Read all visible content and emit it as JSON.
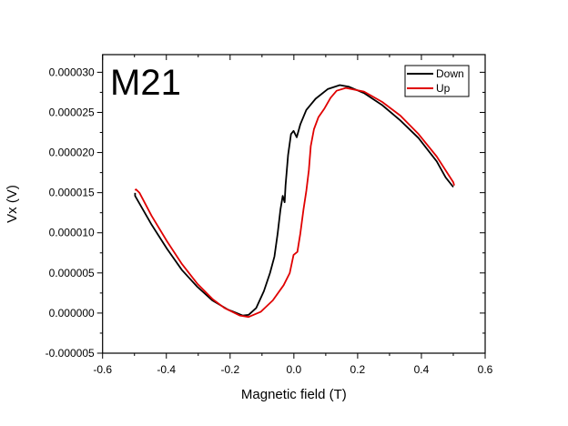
{
  "chart_data": {
    "type": "line",
    "annotation": "M21",
    "xlabel": "Magnetic field (T)",
    "ylabel": "Vx (V)",
    "xlim": [
      -0.6,
      0.6
    ],
    "ylim": [
      -5e-06,
      3.22e-05
    ],
    "xticks": [
      -0.6,
      -0.4,
      -0.2,
      0.0,
      0.2,
      0.4,
      0.6
    ],
    "xtick_labels": [
      "-0.6",
      "-0.4",
      "-0.2",
      "0.0",
      "0.2",
      "0.4",
      "0.6"
    ],
    "yticks": [
      -5e-06,
      0,
      5e-06,
      1e-05,
      1.5e-05,
      2e-05,
      2.5e-05,
      3e-05
    ],
    "ytick_labels": [
      "-0.000005",
      "0.000000",
      "0.000005",
      "0.000010",
      "0.000015",
      "0.000020",
      "0.000025",
      "0.000030"
    ],
    "grid": false,
    "legend_position": "top-right",
    "series": [
      {
        "name": "Down",
        "color": "#000000",
        "x": [
          -0.498,
          -0.498,
          -0.446,
          -0.398,
          -0.351,
          -0.303,
          -0.256,
          -0.208,
          -0.161,
          -0.142,
          -0.118,
          -0.094,
          -0.075,
          -0.061,
          -0.051,
          -0.042,
          -0.035,
          -0.029,
          -0.026,
          -0.018,
          -0.009,
          -0.001,
          0.009,
          0.02,
          0.039,
          0.068,
          0.106,
          0.144,
          0.173,
          0.22,
          0.277,
          0.334,
          0.391,
          0.448,
          0.476,
          0.5
        ],
        "y": [
          1.497e-05,
          1.46e-05,
          1.1e-05,
          8e-06,
          5.35e-06,
          3.28e-06,
          1.58e-06,
          4.5e-07,
          -3e-07,
          -2.3e-07,
          6.4e-07,
          2.72e-06,
          4.98e-06,
          7.05e-06,
          9.88e-06,
          1.29e-05,
          1.46e-05,
          1.38e-05,
          1.59e-05,
          1.97e-05,
          2.23e-05,
          2.27e-05,
          2.19e-05,
          2.35e-05,
          2.53e-05,
          2.67e-05,
          2.79e-05,
          2.84e-05,
          2.82e-05,
          2.74e-05,
          2.59e-05,
          2.4e-05,
          2.18e-05,
          1.89e-05,
          1.69e-05,
          1.57e-05
        ]
      },
      {
        "name": "Up",
        "color": "#e00000",
        "x": [
          -0.498,
          -0.495,
          -0.484,
          -0.446,
          -0.398,
          -0.351,
          -0.303,
          -0.256,
          -0.218,
          -0.17,
          -0.142,
          -0.104,
          -0.066,
          -0.032,
          -0.013,
          -0.001,
          0.011,
          0.02,
          0.03,
          0.039,
          0.047,
          0.053,
          0.063,
          0.077,
          0.096,
          0.115,
          0.134,
          0.163,
          0.22,
          0.277,
          0.334,
          0.391,
          0.448,
          0.5,
          0.503
        ],
        "y": [
          1.53e-05,
          1.54e-05,
          1.497e-05,
          1.21e-05,
          8.94e-06,
          6.1e-06,
          3.66e-06,
          1.77e-06,
          6.4e-07,
          -3e-07,
          -4.9e-07,
          1.5e-07,
          1.58e-06,
          3.47e-06,
          4.98e-06,
          7.24e-06,
          7.62e-06,
          9.88e-06,
          1.29e-05,
          1.52e-05,
          1.78e-05,
          2.08e-05,
          2.29e-05,
          2.44e-05,
          2.55e-05,
          2.68e-05,
          2.77e-05,
          2.805e-05,
          2.76e-05,
          2.63e-05,
          2.46e-05,
          2.23e-05,
          1.95e-05,
          1.63e-05,
          1.59e-05
        ]
      }
    ]
  }
}
